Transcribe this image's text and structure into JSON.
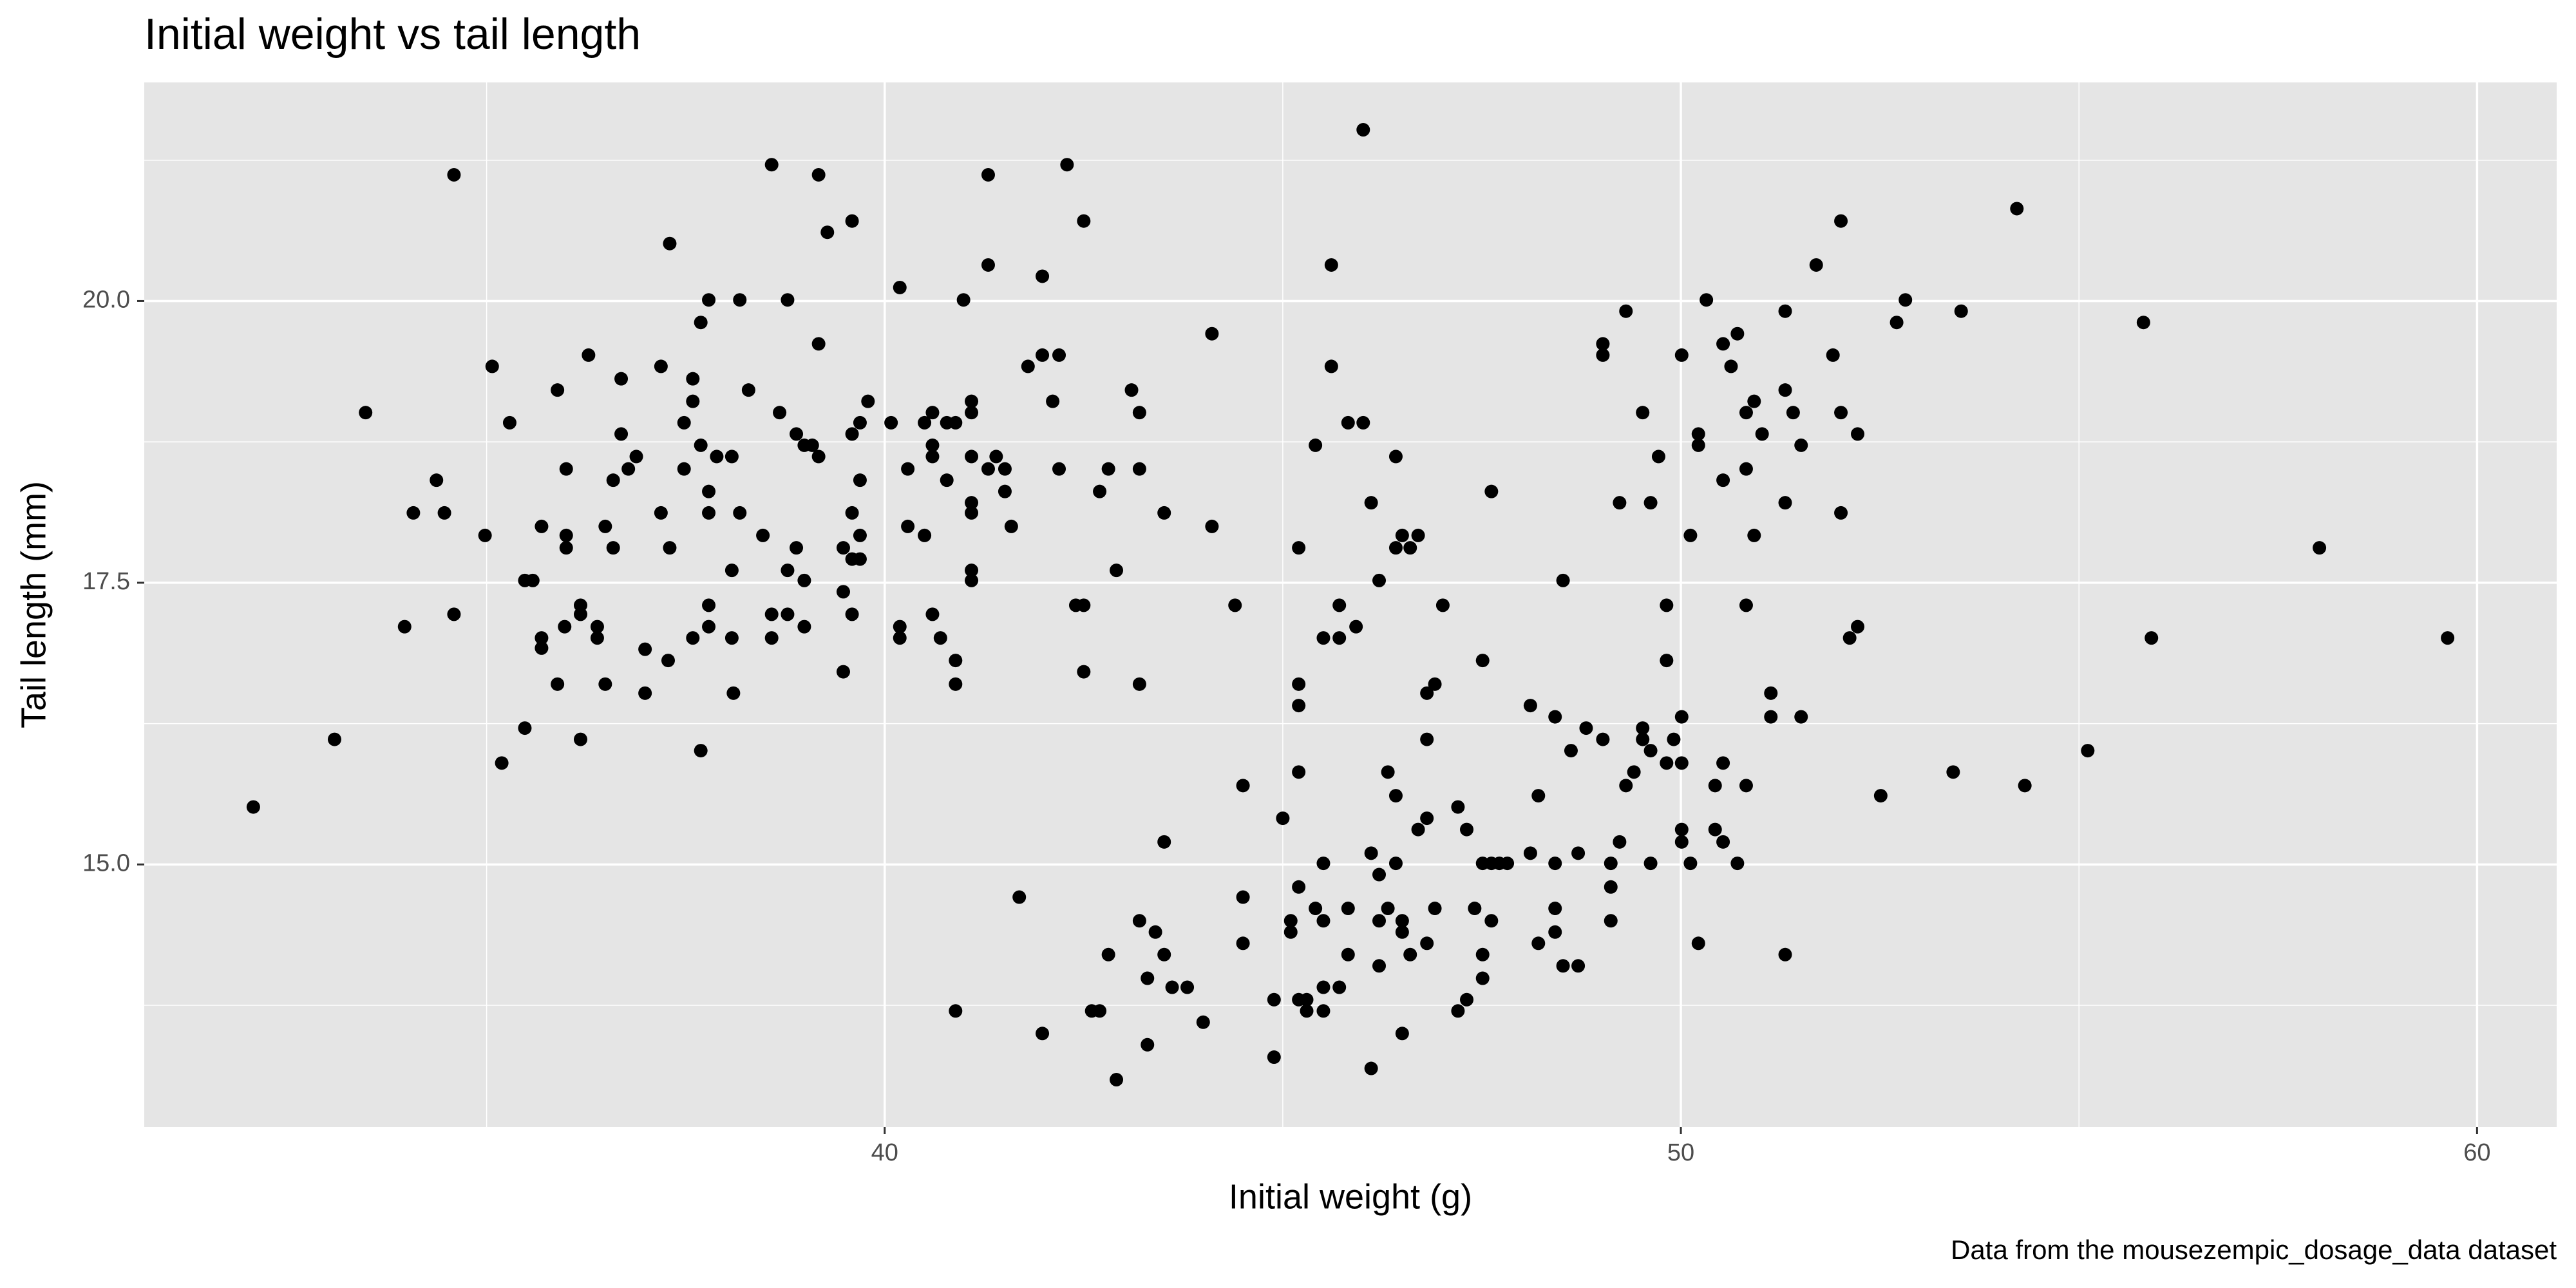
{
  "chart_data": {
    "type": "scatter",
    "title": "Initial weight vs tail length",
    "xlabel": "Initial weight (g)",
    "ylabel": "Tail length (mm)",
    "caption": "Data from the mousezempic_dosage_data dataset",
    "color": "#000000",
    "background": "#e5e5e5",
    "grid": true,
    "xlim": [
      30.7,
      61.0
    ],
    "ylim": [
      12.67,
      21.94
    ],
    "xticks": [
      40,
      50,
      60
    ],
    "yticks": [
      {
        "value": 15,
        "label": "15.0"
      },
      {
        "value": 17.5,
        "label": "17.5"
      },
      {
        "value": 20,
        "label": "20.0"
      }
    ],
    "x_minor_grid": [
      35,
      45,
      55
    ],
    "y_minor_grid": [
      13.75,
      16.25,
      18.75,
      21.25
    ],
    "x": [
      32.07,
      33.09,
      33.48,
      33.97,
      34.08,
      34.37,
      34.47,
      34.59,
      34.59,
      34.98,
      35.07,
      35.19,
      35.29,
      35.48,
      35.48,
      35.58,
      35.69,
      35.69,
      35.69,
      35.89,
      35.89,
      35.98,
      36.0,
      36.0,
      36.0,
      36.18,
      36.18,
      36.18,
      36.28,
      36.39,
      36.39,
      36.49,
      36.49,
      36.59,
      36.59,
      36.69,
      36.69,
      36.78,
      36.88,
      36.99,
      36.99,
      37.19,
      37.19,
      37.28,
      37.3,
      37.3,
      37.48,
      37.48,
      37.59,
      37.59,
      37.59,
      37.69,
      37.69,
      37.69,
      37.79,
      37.79,
      37.79,
      37.79,
      37.79,
      37.89,
      38.08,
      38.08,
      38.08,
      38.1,
      38.18,
      38.18,
      38.29,
      38.47,
      38.58,
      38.58,
      38.58,
      38.68,
      38.78,
      38.78,
      38.78,
      38.89,
      38.89,
      38.99,
      38.99,
      38.99,
      39.09,
      39.17,
      39.17,
      39.17,
      39.28,
      39.48,
      39.48,
      39.48,
      39.59,
      39.59,
      39.59,
      39.59,
      39.59,
      39.69,
      39.69,
      39.69,
      39.69,
      39.79,
      40.08,
      40.19,
      40.19,
      40.19,
      40.29,
      40.29,
      40.5,
      40.5,
      40.6,
      40.6,
      40.6,
      40.6,
      40.7,
      40.78,
      40.78,
      40.89,
      40.89,
      40.89,
      40.89,
      40.99,
      41.09,
      41.09,
      41.09,
      41.09,
      41.09,
      41.09,
      41.09,
      41.3,
      41.3,
      41.3,
      41.4,
      41.51,
      41.51,
      41.59,
      41.69,
      41.8,
      41.98,
      41.98,
      41.98,
      42.11,
      42.19,
      42.19,
      42.29,
      42.4,
      42.5,
      42.5,
      42.5,
      42.6,
      42.7,
      42.7,
      42.81,
      42.81,
      42.91,
      42.91,
      43.1,
      43.2,
      43.2,
      43.2,
      43.2,
      43.3,
      43.3,
      43.4,
      43.51,
      43.51,
      43.51,
      43.61,
      43.8,
      44.0,
      44.11,
      44.11,
      44.4,
      44.5,
      44.5,
      44.5,
      44.89,
      44.89,
      45.0,
      45.1,
      45.1,
      45.2,
      45.2,
      45.2,
      45.2,
      45.2,
      45.2,
      45.3,
      45.3,
      45.41,
      45.41,
      45.51,
      45.51,
      45.51,
      45.51,
      45.51,
      45.61,
      45.61,
      45.71,
      45.71,
      45.71,
      45.82,
      45.82,
      45.82,
      45.92,
      46.01,
      46.01,
      46.11,
      46.11,
      46.11,
      46.21,
      46.21,
      46.21,
      46.21,
      46.32,
      46.32,
      46.42,
      46.42,
      46.42,
      46.42,
      46.5,
      46.5,
      46.5,
      46.5,
      46.6,
      46.6,
      46.7,
      46.7,
      46.81,
      46.81,
      46.81,
      46.81,
      46.91,
      46.91,
      47.01,
      47.2,
      47.2,
      47.31,
      47.31,
      47.41,
      47.51,
      47.51,
      47.51,
      47.51,
      47.62,
      47.62,
      47.62,
      47.72,
      47.82,
      48.11,
      48.11,
      48.21,
      48.21,
      48.42,
      48.42,
      48.42,
      48.42,
      48.52,
      48.52,
      48.62,
      48.71,
      48.71,
      48.81,
      49.02,
      49.02,
      49.02,
      49.12,
      49.12,
      49.12,
      49.23,
      49.23,
      49.31,
      49.31,
      49.41,
      49.52,
      49.52,
      49.52,
      49.62,
      49.62,
      49.62,
      49.72,
      49.82,
      49.82,
      49.82,
      49.91,
      50.01,
      50.01,
      50.01,
      50.01,
      50.01,
      50.12,
      50.12,
      50.22,
      50.22,
      50.22,
      50.32,
      50.43,
      50.43,
      50.53,
      50.53,
      50.53,
      50.53,
      50.63,
      50.71,
      50.71,
      50.82,
      50.82,
      50.82,
      50.82,
      50.92,
      50.92,
      51.02,
      51.13,
      51.13,
      51.31,
      51.31,
      51.31,
      51.31,
      51.41,
      51.51,
      51.51,
      51.7,
      51.91,
      52.01,
      52.01,
      52.01,
      52.12,
      52.22,
      52.22,
      52.51,
      52.71,
      52.82,
      53.42,
      53.52,
      54.22,
      54.32,
      55.11,
      55.81,
      55.91,
      58.02,
      59.63
    ],
    "y": [
      15.51,
      16.11,
      19.01,
      17.11,
      18.12,
      18.41,
      18.12,
      21.12,
      17.22,
      17.92,
      19.42,
      15.9,
      18.92,
      16.21,
      17.52,
      17.52,
      18.0,
      17.01,
      16.92,
      16.6,
      19.21,
      17.11,
      18.51,
      17.92,
      17.81,
      16.11,
      17.3,
      17.22,
      19.52,
      17.11,
      17.01,
      18.0,
      16.6,
      17.81,
      18.41,
      19.31,
      18.82,
      18.51,
      18.62,
      16.52,
      16.91,
      19.42,
      18.12,
      16.81,
      20.51,
      17.81,
      18.51,
      18.92,
      17.01,
      19.31,
      19.11,
      19.81,
      16.01,
      18.72,
      20.01,
      18.31,
      18.12,
      17.3,
      17.11,
      18.62,
      18.62,
      17.61,
      17.01,
      16.52,
      20.01,
      18.12,
      19.21,
      17.92,
      21.21,
      17.22,
      17.01,
      19.01,
      20.01,
      17.61,
      17.22,
      17.81,
      18.82,
      18.72,
      17.11,
      17.52,
      18.72,
      18.62,
      19.62,
      21.12,
      20.61,
      16.71,
      17.42,
      17.81,
      20.71,
      18.12,
      17.71,
      17.22,
      18.82,
      18.92,
      18.41,
      17.92,
      17.71,
      19.11,
      18.92,
      17.11,
      17.01,
      20.12,
      18.51,
      18.0,
      17.92,
      18.92,
      19.01,
      18.72,
      17.22,
      18.62,
      17.01,
      18.41,
      18.92,
      18.92,
      16.81,
      16.6,
      13.7,
      20.01,
      19.11,
      19.01,
      18.62,
      18.21,
      18.12,
      17.61,
      17.52,
      21.12,
      20.32,
      18.51,
      18.62,
      18.51,
      18.31,
      18.0,
      14.71,
      19.42,
      19.52,
      20.22,
      13.5,
      19.11,
      19.52,
      18.51,
      21.21,
      17.3,
      17.3,
      16.71,
      20.71,
      13.7,
      18.31,
      13.7,
      18.51,
      14.2,
      17.61,
      13.09,
      19.21,
      19.01,
      18.51,
      16.6,
      14.5,
      13.99,
      13.4,
      14.4,
      18.12,
      15.2,
      14.2,
      13.91,
      13.91,
      13.6,
      19.71,
      18.0,
      17.3,
      15.7,
      14.71,
      14.3,
      13.8,
      13.29,
      15.41,
      14.4,
      14.5,
      17.81,
      16.6,
      16.41,
      15.82,
      14.8,
      13.8,
      13.8,
      13.7,
      18.72,
      14.61,
      15.01,
      14.5,
      13.91,
      13.7,
      17.01,
      20.32,
      19.42,
      17.01,
      13.91,
      17.3,
      18.92,
      14.61,
      14.2,
      17.11,
      18.92,
      21.52,
      18.21,
      15.1,
      13.19,
      17.52,
      14.91,
      14.5,
      14.1,
      15.82,
      14.61,
      18.62,
      17.81,
      15.61,
      15.01,
      14.5,
      14.4,
      13.5,
      17.92,
      17.81,
      14.2,
      17.92,
      15.31,
      16.11,
      16.52,
      14.3,
      15.41,
      16.6,
      14.61,
      17.3,
      15.51,
      13.7,
      13.8,
      15.31,
      14.61,
      16.81,
      15.01,
      14.2,
      13.99,
      18.31,
      14.5,
      15.01,
      15.01,
      15.01,
      15.1,
      16.41,
      15.61,
      14.3,
      16.31,
      14.61,
      14.4,
      15.01,
      17.52,
      14.1,
      16.01,
      15.1,
      14.1,
      16.21,
      19.62,
      19.52,
      16.11,
      15.01,
      14.8,
      14.5,
      15.2,
      18.21,
      19.91,
      15.7,
      15.82,
      16.21,
      16.11,
      19.01,
      16.01,
      18.21,
      15.01,
      18.62,
      17.3,
      16.81,
      15.9,
      16.11,
      16.31,
      15.9,
      15.31,
      15.2,
      19.52,
      17.92,
      15.01,
      18.82,
      18.72,
      14.3,
      20.01,
      15.31,
      15.7,
      18.41,
      15.9,
      15.2,
      19.62,
      19.42,
      19.71,
      15.01,
      18.51,
      19.01,
      17.3,
      15.7,
      19.11,
      17.92,
      18.82,
      16.52,
      16.31,
      19.91,
      19.21,
      18.21,
      14.2,
      19.01,
      18.72,
      16.31,
      20.32,
      19.52,
      20.71,
      19.01,
      18.12,
      17.01,
      18.82,
      17.11,
      15.61,
      19.81,
      20.01,
      15.82,
      19.91,
      20.82,
      15.7,
      16.01,
      19.81,
      17.01,
      17.81,
      17.01
    ]
  }
}
